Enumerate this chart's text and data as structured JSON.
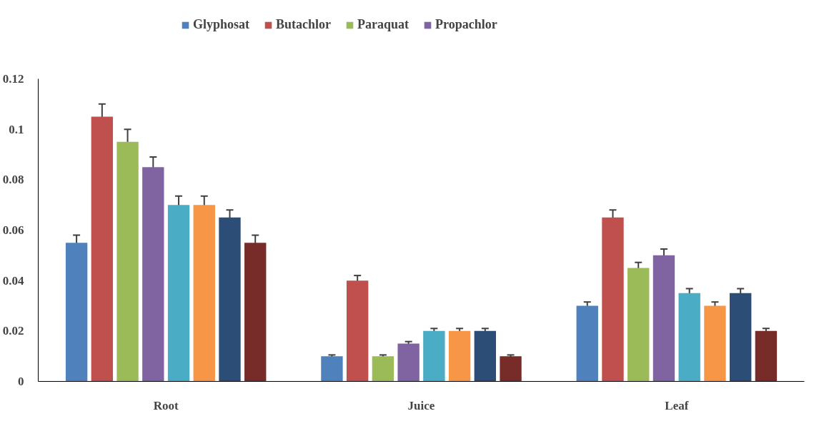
{
  "chart_data": {
    "type": "bar",
    "categories": [
      "Root",
      "Juice",
      "Leaf"
    ],
    "ylim": [
      0,
      0.12
    ],
    "yticks": [
      0,
      0.02,
      0.04,
      0.06,
      0.08,
      0.1,
      0.12
    ],
    "grid": false,
    "legend": "top",
    "series": [
      {
        "name": "Glyphosat",
        "color": "#4f81bd",
        "values": [
          0.055,
          0.01,
          0.03
        ],
        "errors": [
          0.003,
          0.0005,
          0.0015
        ]
      },
      {
        "name": "Butachlor",
        "color": "#c0504d",
        "values": [
          0.105,
          0.04,
          0.065
        ],
        "errors": [
          0.005,
          0.002,
          0.003
        ]
      },
      {
        "name": "Paraquat",
        "color": "#9bbb59",
        "values": [
          0.095,
          0.01,
          0.045
        ],
        "errors": [
          0.005,
          0.0005,
          0.0022
        ]
      },
      {
        "name": "Propachlor",
        "color": "#8064a2",
        "values": [
          0.085,
          0.015,
          0.05
        ],
        "errors": [
          0.004,
          0.0008,
          0.0025
        ]
      },
      {
        "color": "#4bacc6",
        "values": [
          0.07,
          0.02,
          0.035
        ],
        "errors": [
          0.0035,
          0.001,
          0.0018
        ]
      },
      {
        "color": "#f79646",
        "values": [
          0.07,
          0.02,
          0.03
        ],
        "errors": [
          0.0035,
          0.001,
          0.0015
        ]
      },
      {
        "color": "#2c4d75",
        "values": [
          0.065,
          0.02,
          0.035
        ],
        "errors": [
          0.003,
          0.001,
          0.0018
        ]
      },
      {
        "color": "#772c2a",
        "values": [
          0.055,
          0.01,
          0.02
        ],
        "errors": [
          0.003,
          0.0005,
          0.001
        ]
      }
    ]
  }
}
